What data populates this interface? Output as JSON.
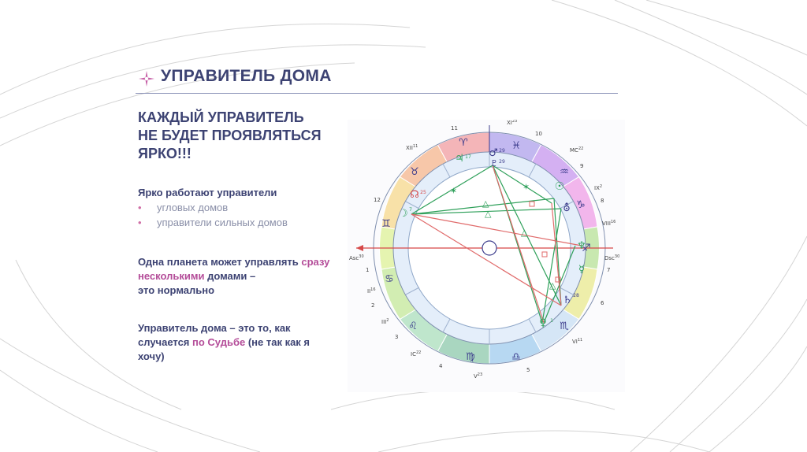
{
  "header": {
    "title": "УПРАВИТЕЛЬ ДОМА"
  },
  "left": {
    "headline": [
      "КАЖДЫЙ УПРАВИТЕЛЬ",
      "НЕ БУДЕТ ПРОЯВЛЯТЬСЯ",
      "ЯРКО!!!"
    ],
    "block1": {
      "heading": "Ярко работают управители",
      "items": [
        "угловых домов",
        "управители сильных домов"
      ]
    },
    "block2": {
      "part1": "Одна планета может управлять ",
      "highlight": "сразу несколькими",
      "part2": " домами –",
      "line2": "это нормально"
    },
    "block3": {
      "line1": "Управитель дома – это то, как",
      "part1": "случается ",
      "highlight": "по Судьбе",
      "part2": " (не так как я",
      "line3": "хочу)"
    }
  },
  "chart": {
    "labels": {
      "asc": "Asc",
      "asc_sup": "30",
      "dsc": "Dsc",
      "dsc_sup": "30",
      "mc": "MC",
      "mc_sup": "22",
      "ic": "IC",
      "ic_sup": "22",
      "h_xi": "XI",
      "h_xi_sup": "23",
      "h_xii": "XII",
      "h_xii_sup": "11",
      "h_ii": "II",
      "h_ii_sup": "16",
      "h_iii": "III",
      "h_iii_sup": "2",
      "h_v": "V",
      "h_v_sup": "23",
      "h_vi": "VI",
      "h_vi_sup": "11",
      "h_viii": "VIII",
      "h_viii_sup": "16",
      "h_ix": "IX",
      "h_ix_sup": "2",
      "n1": "1",
      "n2": "2",
      "n3": "3",
      "n4": "4",
      "n5": "5",
      "n6": "6",
      "n7": "7",
      "n8": "8",
      "n9": "9",
      "n10": "10",
      "n11": "11",
      "n12": "12"
    },
    "signs": {
      "aries": "♈",
      "pisces": "♓",
      "aquarius": "♒",
      "capricorn": "♑",
      "sagittarius": "♐",
      "scorpio": "♏",
      "libra": "♎",
      "virgo": "♍",
      "leo": "♌",
      "cancer": "♋",
      "gemini": "♊",
      "taurus": "♉"
    },
    "planets": {
      "jupiter": "♃",
      "jupiter_deg": "17",
      "mars": "♂",
      "mars_deg": "29",
      "pluto": "♇",
      "pluto_deg": "29",
      "node": "☊",
      "node_deg": "25",
      "moon": "☽",
      "moon_deg": "7",
      "sun": "☉",
      "neptune": "♆",
      "saturn": "♄",
      "saturn_deg": "28",
      "mercury": "☿",
      "venus": "♀",
      "venus_deg": "1",
      "uranus": "⛢"
    },
    "aspects": {
      "sextile": "✶",
      "trine": "△"
    }
  },
  "colors": {
    "title": "#3d4373",
    "highlight": "#b44d99",
    "bullet": "#d06fa6",
    "muted": "#8a8fa8"
  }
}
